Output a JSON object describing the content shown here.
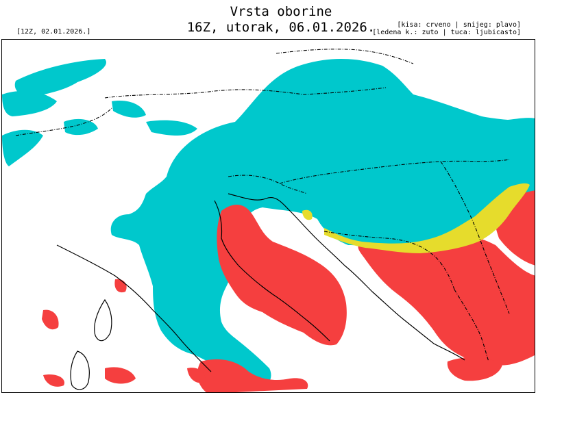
{
  "header": {
    "title": "Vrsta oborine",
    "subtitle": "16Z, utorak, 06.01.2026.",
    "run_info": "[12Z, 02.01.2026.]",
    "legend_line1": "[kisa: crveno | snijeg: plavo]",
    "legend_line2": "[ledena k.: zuto | tuca: ljubicasto]"
  },
  "colors": {
    "rain": "#f53f3f",
    "snow": "#00c8cc",
    "freezing_rain": "#e6dc2c",
    "hail": "#b05ab0",
    "background": "#ffffff",
    "lines": "#000000"
  },
  "map": {
    "type": "precipitation-type",
    "region": "Adriatic / Central Europe"
  }
}
